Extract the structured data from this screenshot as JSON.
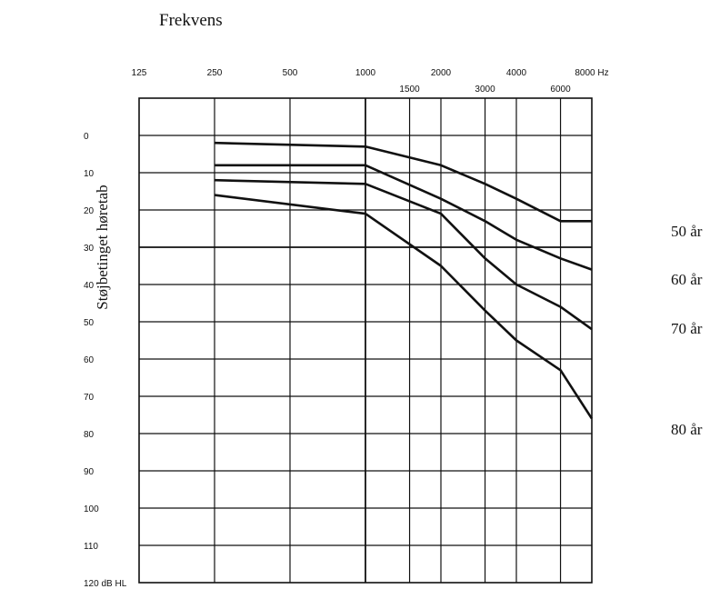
{
  "chart_data": {
    "type": "line",
    "title": "Frekvens",
    "xlabel": "Frekvens",
    "ylabel": "Støjbetinget høretab",
    "x_scale": "log",
    "x_ticks_top": [
      "125",
      "250",
      "500",
      "1000",
      "2000",
      "4000",
      "8000 Hz"
    ],
    "x_ticks_bottom": [
      "1500",
      "3000",
      "6000"
    ],
    "x_tick_values_top": [
      125,
      250,
      500,
      1000,
      2000,
      4000,
      8000
    ],
    "x_tick_values_bottom": [
      1500,
      3000,
      6000
    ],
    "y_ticks": [
      "0",
      "10",
      "20",
      "30",
      "40",
      "50",
      "60",
      "70",
      "80",
      "90",
      "100",
      "110",
      "120 dB HL"
    ],
    "y_tick_values": [
      0,
      10,
      20,
      30,
      40,
      50,
      60,
      70,
      80,
      90,
      100,
      110,
      120
    ],
    "ylim": [
      -10,
      120
    ],
    "xlim": [
      125,
      8000
    ],
    "y_inverted": true,
    "grid": true,
    "series": [
      {
        "name": "50 år",
        "points": [
          [
            250,
            2
          ],
          [
            1000,
            3
          ],
          [
            2000,
            8
          ],
          [
            3000,
            13
          ],
          [
            4000,
            17
          ],
          [
            6000,
            23
          ],
          [
            8000,
            23
          ]
        ]
      },
      {
        "name": "60 år",
        "points": [
          [
            250,
            8
          ],
          [
            1000,
            8
          ],
          [
            2000,
            17
          ],
          [
            3000,
            23
          ],
          [
            4000,
            28
          ],
          [
            6000,
            33
          ],
          [
            8000,
            36
          ]
        ]
      },
      {
        "name": "70 år",
        "points": [
          [
            250,
            12
          ],
          [
            1000,
            13
          ],
          [
            2000,
            21
          ],
          [
            3000,
            33
          ],
          [
            4000,
            40
          ],
          [
            6000,
            46
          ],
          [
            8000,
            52
          ]
        ]
      },
      {
        "name": "80 år",
        "points": [
          [
            250,
            16
          ],
          [
            1000,
            21
          ],
          [
            2000,
            35
          ],
          [
            3000,
            47
          ],
          [
            4000,
            55
          ],
          [
            6000,
            63
          ],
          [
            8000,
            76
          ]
        ]
      }
    ],
    "line_color": "#111111"
  }
}
